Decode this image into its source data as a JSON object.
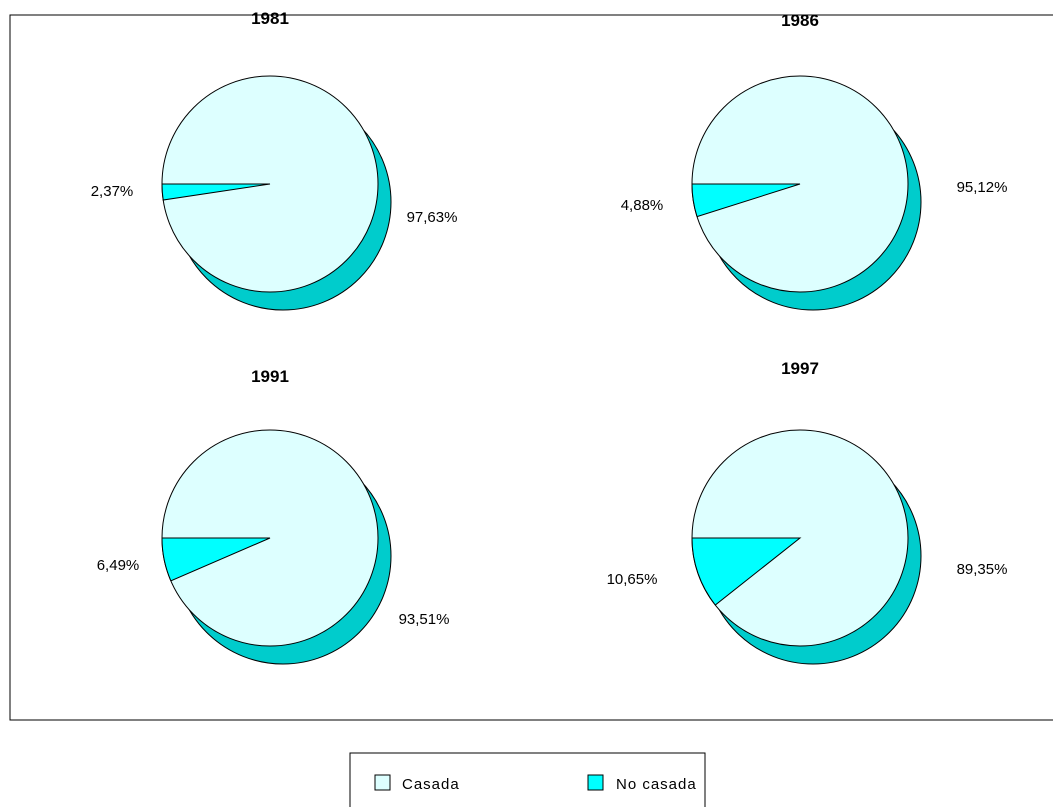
{
  "chart_data": {
    "type": "pie",
    "legend_position": "bottom",
    "categories": [
      "Casada",
      "No casada"
    ],
    "colors": {
      "Casada": "#DDFFFF",
      "No casada": "#00FFFF",
      "shadow": "#00CCCC"
    },
    "pies": [
      {
        "title": "1981",
        "values": [
          97.63,
          2.37
        ],
        "labels": [
          "97,63%",
          "2,37%"
        ]
      },
      {
        "title": "1986",
        "values": [
          95.12,
          4.88
        ],
        "labels": [
          "95,12%",
          "4,88%"
        ]
      },
      {
        "title": "1991",
        "values": [
          93.51,
          6.49
        ],
        "labels": [
          "93,51%",
          "6,49%"
        ]
      },
      {
        "title": "1997",
        "values": [
          89.35,
          10.65
        ],
        "labels": [
          "89,35%",
          "10,65%"
        ]
      }
    ],
    "legend": [
      {
        "label": "Casada",
        "color": "#DDFFFF"
      },
      {
        "label": "No casada",
        "color": "#00FFFF"
      }
    ]
  }
}
